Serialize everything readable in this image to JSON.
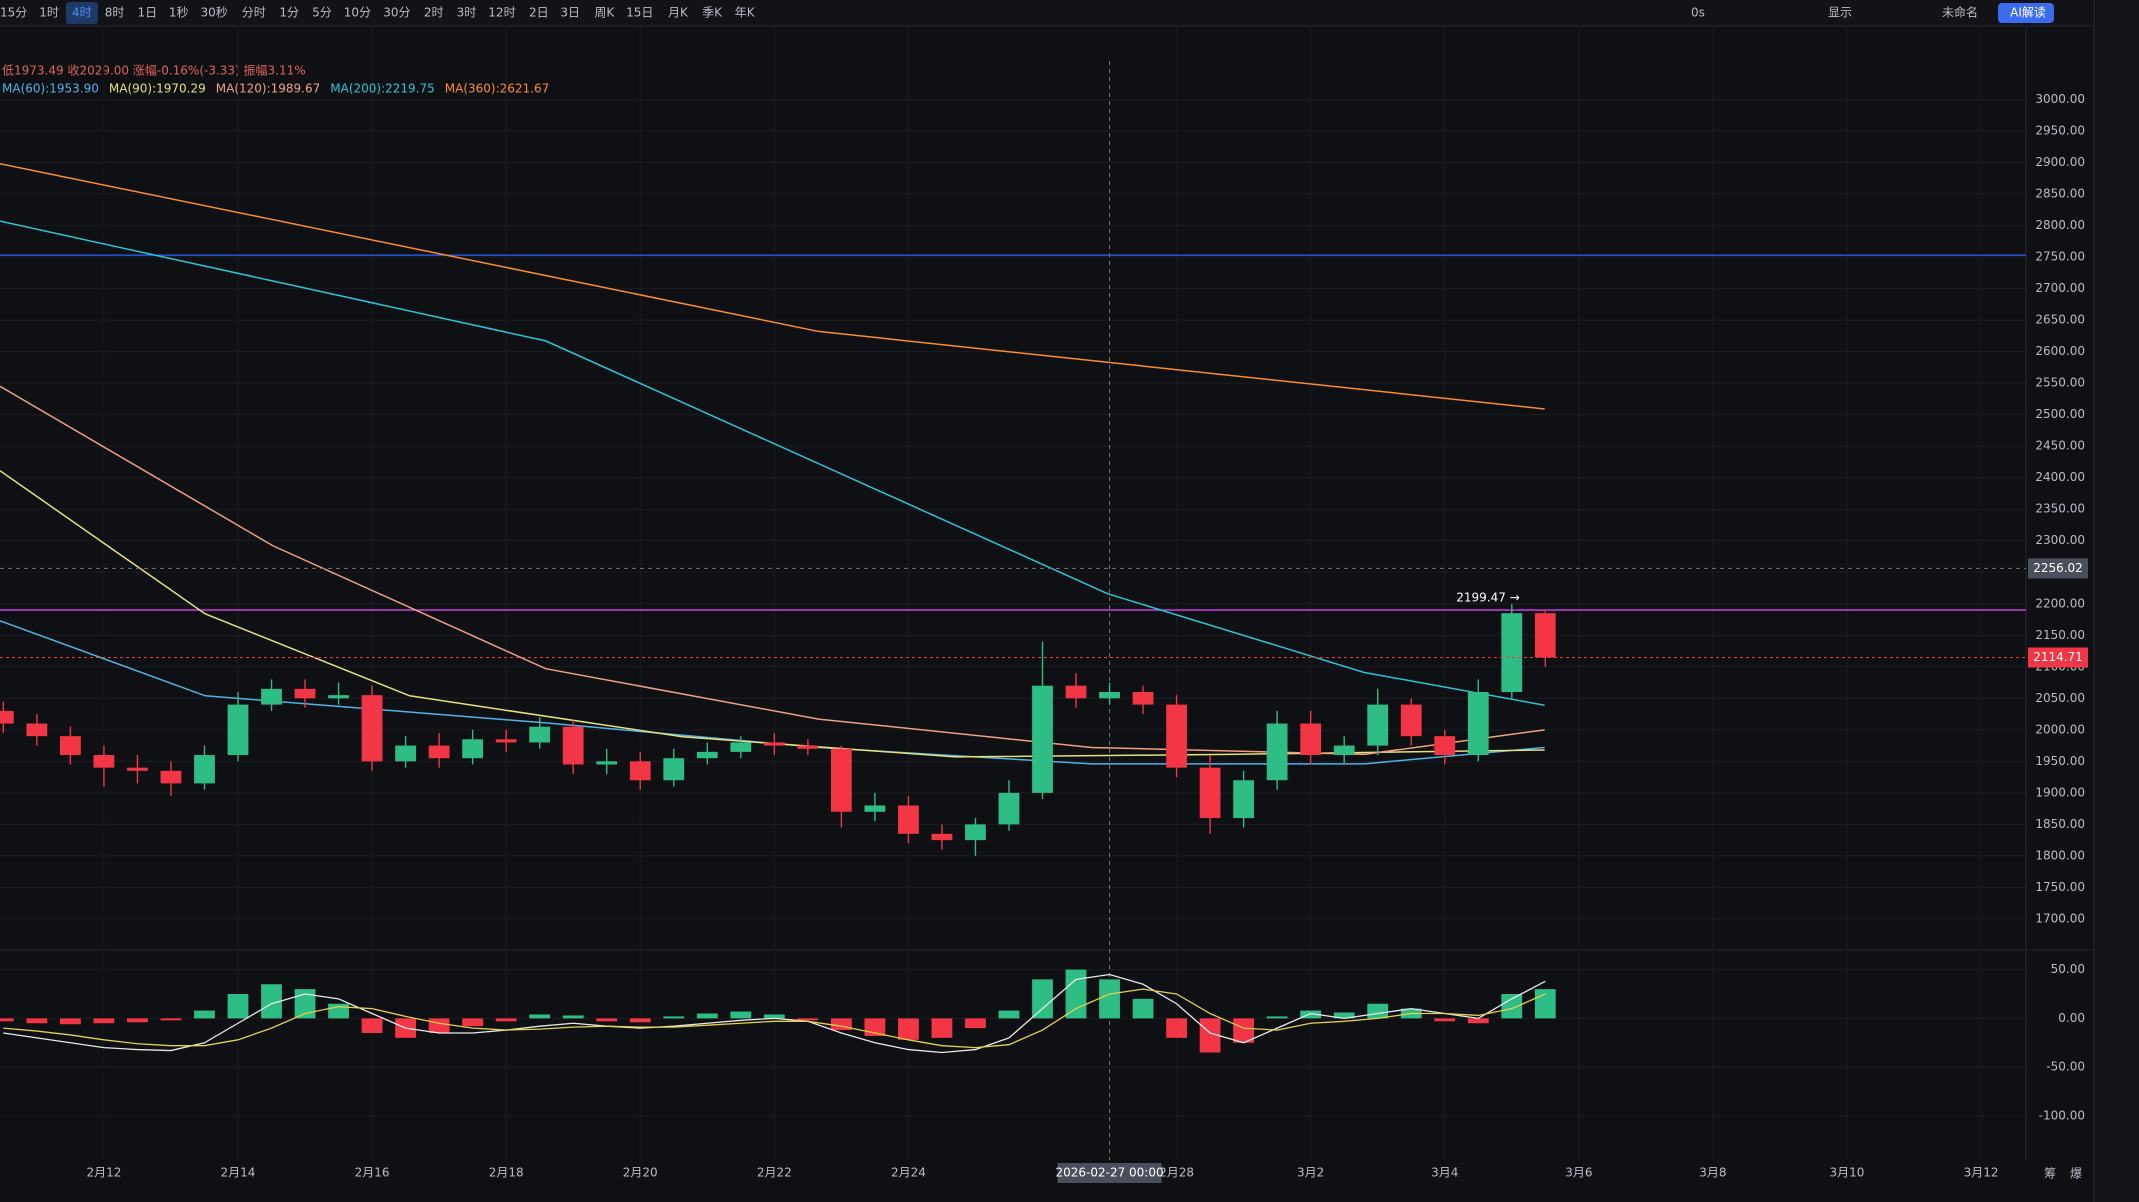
{
  "toolbar": {
    "intervals": [
      "15分",
      "1时",
      "4时",
      "8时",
      "1日",
      "1秒",
      "30秒",
      "分时",
      "1分",
      "5分",
      "10分",
      "30分",
      "2时",
      "3时",
      "12时",
      "2日",
      "3日",
      "周K",
      "15日",
      "月K",
      "季K",
      "年K"
    ],
    "selected": 2,
    "right": [
      "0s",
      "显示",
      "未命名",
      "AI解读"
    ]
  },
  "info_line": "低1973.49 收2029.00 涨幅-0.16%(-3.33) 振幅3.11%",
  "chart_data": {
    "type": "candlestick",
    "x": [
      10.5,
      11,
      11.5,
      12,
      12.5,
      13,
      13.5,
      14,
      14.5,
      15,
      15.5,
      16,
      16.5,
      17,
      17.5,
      18,
      18.5,
      19,
      19.5,
      20,
      20.5,
      21,
      21.5,
      22,
      22.5,
      23,
      23.5,
      24,
      24.5,
      25,
      25.5,
      26,
      26.5,
      27,
      27.5,
      28,
      28.5,
      29,
      29.5,
      30,
      30.5,
      31,
      31.5,
      32,
      32.5,
      33,
      33.5
    ],
    "open": [
      2030,
      2010,
      1990,
      1960,
      1940,
      1935,
      1915,
      1960,
      2040,
      2065,
      2050,
      2055,
      1950,
      1975,
      1955,
      1985,
      1980,
      2005,
      1945,
      1950,
      1920,
      1955,
      1965,
      1980,
      1975,
      1970,
      1870,
      1880,
      1835,
      1825,
      1850,
      1900,
      2070,
      2050,
      2060,
      2040,
      1940,
      1860,
      1920,
      2010,
      1960,
      1975,
      2040,
      1990,
      1960,
      2060,
      2185
    ],
    "high": [
      2045,
      2025,
      2005,
      1975,
      1960,
      1950,
      1975,
      2060,
      2080,
      2080,
      2075,
      2070,
      1990,
      1995,
      2000,
      2000,
      2020,
      2015,
      1970,
      1965,
      1970,
      1980,
      1990,
      1995,
      1985,
      1975,
      1900,
      1895,
      1850,
      1860,
      1920,
      2140,
      2090,
      2075,
      2070,
      2055,
      1960,
      1935,
      2030,
      2030,
      1990,
      2065,
      2050,
      2000,
      2080,
      2199.47,
      2190
    ],
    "low": [
      1995,
      1975,
      1945,
      1910,
      1915,
      1895,
      1905,
      1950,
      2030,
      2035,
      2040,
      1935,
      1940,
      1940,
      1945,
      1965,
      1970,
      1930,
      1930,
      1905,
      1910,
      1945,
      1955,
      1960,
      1960,
      1845,
      1855,
      1820,
      1810,
      1800,
      1840,
      1890,
      2035,
      2040,
      2025,
      1925,
      1835,
      1845,
      1905,
      1945,
      1945,
      1960,
      1975,
      1945,
      1950,
      2050,
      2100
    ],
    "close": [
      2010,
      1990,
      1960,
      1940,
      1935,
      1915,
      1960,
      2040,
      2065,
      2050,
      2055,
      1950,
      1975,
      1955,
      1985,
      1980,
      2005,
      1945,
      1950,
      1920,
      1955,
      1965,
      1980,
      1975,
      1970,
      1870,
      1880,
      1835,
      1825,
      1850,
      1900,
      2070,
      2050,
      2060,
      2040,
      1940,
      1860,
      1920,
      2010,
      1960,
      1975,
      2040,
      1990,
      1960,
      2060,
      2185,
      2114.71
    ],
    "up_color": "#2ebd85",
    "down_color": "#f23645",
    "ma": [
      {
        "name": "MA(60):1953.90",
        "color": "#4fb3e8",
        "x": [
          10.45,
          13.51,
          18.59,
          22.66,
          26.73,
          30.8,
          33.49
        ],
        "values": [
          2173,
          2054,
          2011,
          1972,
          1946,
          1946,
          1972
        ]
      },
      {
        "name": "MA(90):1970.29",
        "color": "#e4e07a",
        "x": [
          10.45,
          13.51,
          16.56,
          20.63,
          24.7,
          28.76,
          33.49
        ],
        "values": [
          2411,
          2184,
          2054,
          1989,
          1957,
          1961,
          1968
        ]
      },
      {
        "name": "MA(120):1989.67",
        "color": "#f0a080",
        "x": [
          10.45,
          14.52,
          18.59,
          22.66,
          26.73,
          30.8,
          33.49
        ],
        "values": [
          2545,
          2292,
          2097,
          2017,
          1972,
          1961,
          2000
        ]
      },
      {
        "name": "MA(200):2219.75",
        "color": "#26c6da",
        "x": [
          10.45,
          18.59,
          26.97,
          30.8,
          33.49
        ],
        "values": [
          2807,
          2617,
          2216,
          2091,
          2039
        ]
      },
      {
        "name": "MA(360):2621.67",
        "color": "#ff8c28",
        "x": [
          10.45,
          22.66,
          33.49
        ],
        "values": [
          2898,
          2632,
          2509
        ]
      }
    ],
    "hlines": [
      {
        "value": 2753,
        "color": "#2962ff"
      },
      {
        "value": 2190,
        "color": "#e040fb"
      }
    ],
    "last_price": {
      "value": 2114.71,
      "label": "2114.71"
    },
    "high_mark": {
      "value": 2199.47,
      "label": "2199.47 →",
      "x": 33
    },
    "crosshair": {
      "x": 27,
      "label": "2026-02-27 00:00",
      "price": {
        "value": 2256.02,
        "label": "2256.02"
      }
    },
    "xlim": [
      10.45,
      40.67
    ],
    "xticks": [
      {
        "value": 12,
        "label": "2月12"
      },
      {
        "value": 14,
        "label": "2月14"
      },
      {
        "value": 16,
        "label": "2月16"
      },
      {
        "value": 18,
        "label": "2月18"
      },
      {
        "value": 20,
        "label": "2月20"
      },
      {
        "value": 22,
        "label": "2月22"
      },
      {
        "value": 24,
        "label": "2月24"
      },
      {
        "value": 28,
        "label": "2月28"
      },
      {
        "value": 30,
        "label": "3月2"
      },
      {
        "value": 32,
        "label": "3月4"
      },
      {
        "value": 34,
        "label": "3月6"
      },
      {
        "value": 36,
        "label": "3月8"
      },
      {
        "value": 38,
        "label": "3月10"
      },
      {
        "value": 40,
        "label": "3月12"
      }
    ],
    "ylim": [
      1665,
      3061
    ],
    "yticks": [
      {
        "value": 3000,
        "label": "3000.00"
      },
      {
        "value": 2950,
        "label": "2950.00"
      },
      {
        "value": 2900,
        "label": "2900.00"
      },
      {
        "value": 2850,
        "label": "2850.00"
      },
      {
        "value": 2800,
        "label": "2800.00"
      },
      {
        "value": 2750,
        "label": "2750.00"
      },
      {
        "value": 2700,
        "label": "2700.00"
      },
      {
        "value": 2650,
        "label": "2650.00"
      },
      {
        "value": 2600,
        "label": "2600.00"
      },
      {
        "value": 2550,
        "label": "2550.00"
      },
      {
        "value": 2500,
        "label": "2500.00"
      },
      {
        "value": 2450,
        "label": "2450.00"
      },
      {
        "value": 2400,
        "label": "2400.00"
      },
      {
        "value": 2350,
        "label": "2350.00"
      },
      {
        "value": 2300,
        "label": "2300.00"
      },
      {
        "value": 2250,
        "label": "2250.00"
      },
      {
        "value": 2200,
        "label": "2200.00"
      },
      {
        "value": 2150,
        "label": "2150.00"
      },
      {
        "value": 2100,
        "label": "2100.00"
      },
      {
        "value": 2050,
        "label": "2050.00"
      },
      {
        "value": 2000,
        "label": "2000.00"
      },
      {
        "value": 1950,
        "label": "1950.00"
      },
      {
        "value": 1900,
        "label": "1900.00"
      },
      {
        "value": 1850,
        "label": "1850.00"
      },
      {
        "value": 1800,
        "label": "1800.00"
      },
      {
        "value": 1750,
        "label": "1750.00"
      },
      {
        "value": 1700,
        "label": "1700.00"
      }
    ],
    "macd": {
      "ylim": [
        -135,
        65
      ],
      "yticks": [
        {
          "value": 50,
          "label": "50.00"
        },
        {
          "value": 0,
          "label": "0.00"
        },
        {
          "value": -50,
          "label": "-50.00"
        },
        {
          "value": -100,
          "label": "-100.00"
        }
      ],
      "hist": [
        -3,
        -5,
        -6,
        -5,
        -4,
        -2,
        8,
        25,
        35,
        30,
        15,
        -15,
        -20,
        -15,
        -8,
        -3,
        4,
        3,
        -3,
        -4,
        2,
        5,
        7,
        4,
        -2,
        -12,
        -18,
        -22,
        -20,
        -10,
        8,
        40,
        50,
        40,
        20,
        -20,
        -35,
        -25,
        2,
        8,
        6,
        15,
        10,
        -3,
        -5,
        25,
        30
      ],
      "dif": [
        -15,
        -20,
        -25,
        -30,
        -32,
        -33,
        -25,
        -5,
        15,
        25,
        20,
        5,
        -10,
        -15,
        -15,
        -12,
        -8,
        -5,
        -8,
        -10,
        -8,
        -5,
        -2,
        0,
        -3,
        -15,
        -25,
        -32,
        -35,
        -32,
        -20,
        10,
        40,
        45,
        35,
        15,
        -15,
        -25,
        -10,
        5,
        0,
        5,
        10,
        5,
        0,
        20,
        38
      ],
      "dea": [
        -10,
        -13,
        -17,
        -22,
        -26,
        -28,
        -28,
        -22,
        -10,
        5,
        12,
        10,
        2,
        -5,
        -10,
        -12,
        -11,
        -9,
        -8,
        -9,
        -9,
        -7,
        -5,
        -3,
        -3,
        -8,
        -15,
        -22,
        -28,
        -30,
        -27,
        -12,
        10,
        25,
        30,
        25,
        5,
        -10,
        -12,
        -5,
        -3,
        0,
        5,
        5,
        3,
        10,
        25
      ],
      "dif_color": "#e8e8e8",
      "dea_color": "#e4d04a"
    },
    "grid": true
  },
  "corner": [
    "筹",
    "爆"
  ]
}
